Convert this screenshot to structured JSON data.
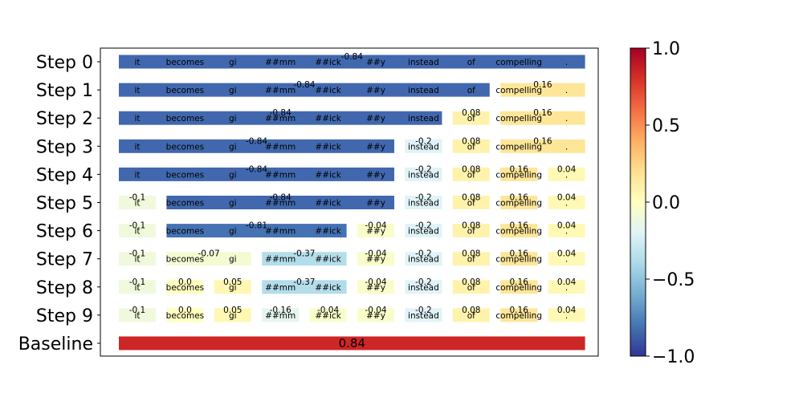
{
  "chart_data": {
    "type": "heatmap",
    "tokens": [
      "it",
      "becomes",
      "gi",
      "##mm",
      "##ick",
      "##y",
      "instead",
      "of",
      "compelling",
      "."
    ],
    "steps": [
      {
        "label": "Step 0",
        "segments": [
          {
            "start": 0,
            "end": 9,
            "value": -0.84,
            "label": "-0.84"
          }
        ]
      },
      {
        "label": "Step 1",
        "segments": [
          {
            "start": 0,
            "end": 7,
            "value": -0.84,
            "label": "-0.84"
          },
          {
            "start": 8,
            "end": 9,
            "value": 0.16,
            "label": "0.16"
          }
        ]
      },
      {
        "label": "Step 2",
        "segments": [
          {
            "start": 0,
            "end": 6,
            "value": -0.84,
            "label": "-0.84"
          },
          {
            "start": 7,
            "end": 7,
            "value": 0.08,
            "label": "0.08"
          },
          {
            "start": 8,
            "end": 9,
            "value": 0.16,
            "label": "0.16"
          }
        ]
      },
      {
        "label": "Step 3",
        "segments": [
          {
            "start": 0,
            "end": 5,
            "value": -0.84,
            "label": "-0.84"
          },
          {
            "start": 6,
            "end": 6,
            "value": -0.2,
            "label": "-0.2"
          },
          {
            "start": 7,
            "end": 7,
            "value": 0.08,
            "label": "0.08"
          },
          {
            "start": 8,
            "end": 9,
            "value": 0.16,
            "label": "0.16"
          }
        ]
      },
      {
        "label": "Step 4",
        "segments": [
          {
            "start": 0,
            "end": 5,
            "value": -0.84,
            "label": "-0.84"
          },
          {
            "start": 6,
            "end": 6,
            "value": -0.2,
            "label": "-0.2"
          },
          {
            "start": 7,
            "end": 7,
            "value": 0.08,
            "label": "0.08"
          },
          {
            "start": 8,
            "end": 8,
            "value": 0.16,
            "label": "0.16"
          },
          {
            "start": 9,
            "end": 9,
            "value": 0.04,
            "label": "0.04"
          }
        ]
      },
      {
        "label": "Step 5",
        "segments": [
          {
            "start": 0,
            "end": 0,
            "value": -0.1,
            "label": "-0.1"
          },
          {
            "start": 1,
            "end": 5,
            "value": -0.84,
            "label": "-0.84"
          },
          {
            "start": 6,
            "end": 6,
            "value": -0.2,
            "label": "-0.2"
          },
          {
            "start": 7,
            "end": 7,
            "value": 0.08,
            "label": "0.08"
          },
          {
            "start": 8,
            "end": 8,
            "value": 0.16,
            "label": "0.16"
          },
          {
            "start": 9,
            "end": 9,
            "value": 0.04,
            "label": "0.04"
          }
        ]
      },
      {
        "label": "Step 6",
        "segments": [
          {
            "start": 0,
            "end": 0,
            "value": -0.1,
            "label": "-0.1"
          },
          {
            "start": 1,
            "end": 4,
            "value": -0.81,
            "label": "-0.81"
          },
          {
            "start": 5,
            "end": 5,
            "value": -0.04,
            "label": "-0.04"
          },
          {
            "start": 6,
            "end": 6,
            "value": -0.2,
            "label": "-0.2"
          },
          {
            "start": 7,
            "end": 7,
            "value": 0.08,
            "label": "0.08"
          },
          {
            "start": 8,
            "end": 8,
            "value": 0.16,
            "label": "0.16"
          },
          {
            "start": 9,
            "end": 9,
            "value": 0.04,
            "label": "0.04"
          }
        ]
      },
      {
        "label": "Step 7",
        "segments": [
          {
            "start": 0,
            "end": 0,
            "value": -0.1,
            "label": "-0.1"
          },
          {
            "start": 1,
            "end": 2,
            "value": -0.07,
            "label": "-0.07"
          },
          {
            "start": 3,
            "end": 4,
            "value": -0.37,
            "label": "-0.37"
          },
          {
            "start": 5,
            "end": 5,
            "value": -0.04,
            "label": "-0.04"
          },
          {
            "start": 6,
            "end": 6,
            "value": -0.2,
            "label": "-0.2"
          },
          {
            "start": 7,
            "end": 7,
            "value": 0.08,
            "label": "0.08"
          },
          {
            "start": 8,
            "end": 8,
            "value": 0.16,
            "label": "0.16"
          },
          {
            "start": 9,
            "end": 9,
            "value": 0.04,
            "label": "0.04"
          }
        ]
      },
      {
        "label": "Step 8",
        "segments": [
          {
            "start": 0,
            "end": 0,
            "value": -0.1,
            "label": "-0.1"
          },
          {
            "start": 1,
            "end": 1,
            "value": 0.0,
            "label": "0.0"
          },
          {
            "start": 2,
            "end": 2,
            "value": 0.05,
            "label": "0.05"
          },
          {
            "start": 3,
            "end": 4,
            "value": -0.37,
            "label": "-0.37"
          },
          {
            "start": 5,
            "end": 5,
            "value": -0.04,
            "label": "-0.04"
          },
          {
            "start": 6,
            "end": 6,
            "value": -0.2,
            "label": "-0.2"
          },
          {
            "start": 7,
            "end": 7,
            "value": 0.08,
            "label": "0.08"
          },
          {
            "start": 8,
            "end": 8,
            "value": 0.16,
            "label": "0.16"
          },
          {
            "start": 9,
            "end": 9,
            "value": 0.04,
            "label": "0.04"
          }
        ]
      },
      {
        "label": "Step 9",
        "segments": [
          {
            "start": 0,
            "end": 0,
            "value": -0.1,
            "label": "-0.1"
          },
          {
            "start": 1,
            "end": 1,
            "value": 0.0,
            "label": "0.0"
          },
          {
            "start": 2,
            "end": 2,
            "value": 0.05,
            "label": "0.05"
          },
          {
            "start": 3,
            "end": 3,
            "value": -0.16,
            "label": "-0.16"
          },
          {
            "start": 4,
            "end": 4,
            "value": -0.04,
            "label": "-0.04"
          },
          {
            "start": 5,
            "end": 5,
            "value": -0.04,
            "label": "-0.04"
          },
          {
            "start": 6,
            "end": 6,
            "value": -0.2,
            "label": "-0.2"
          },
          {
            "start": 7,
            "end": 7,
            "value": 0.08,
            "label": "0.08"
          },
          {
            "start": 8,
            "end": 8,
            "value": 0.16,
            "label": "0.16"
          },
          {
            "start": 9,
            "end": 9,
            "value": 0.04,
            "label": "0.04"
          }
        ]
      }
    ],
    "baseline": {
      "label": "Baseline",
      "value": 0.84,
      "value_label": "0.84"
    },
    "colorbar": {
      "colormap": "RdYlBu_r",
      "range": [
        -1.0,
        1.0
      ],
      "ticks": [
        1.0,
        0.5,
        0.0,
        -0.5,
        -1.0
      ],
      "tick_labels": [
        "1.0",
        "0.5",
        "0.0",
        "−0.5",
        "−1.0"
      ]
    }
  }
}
